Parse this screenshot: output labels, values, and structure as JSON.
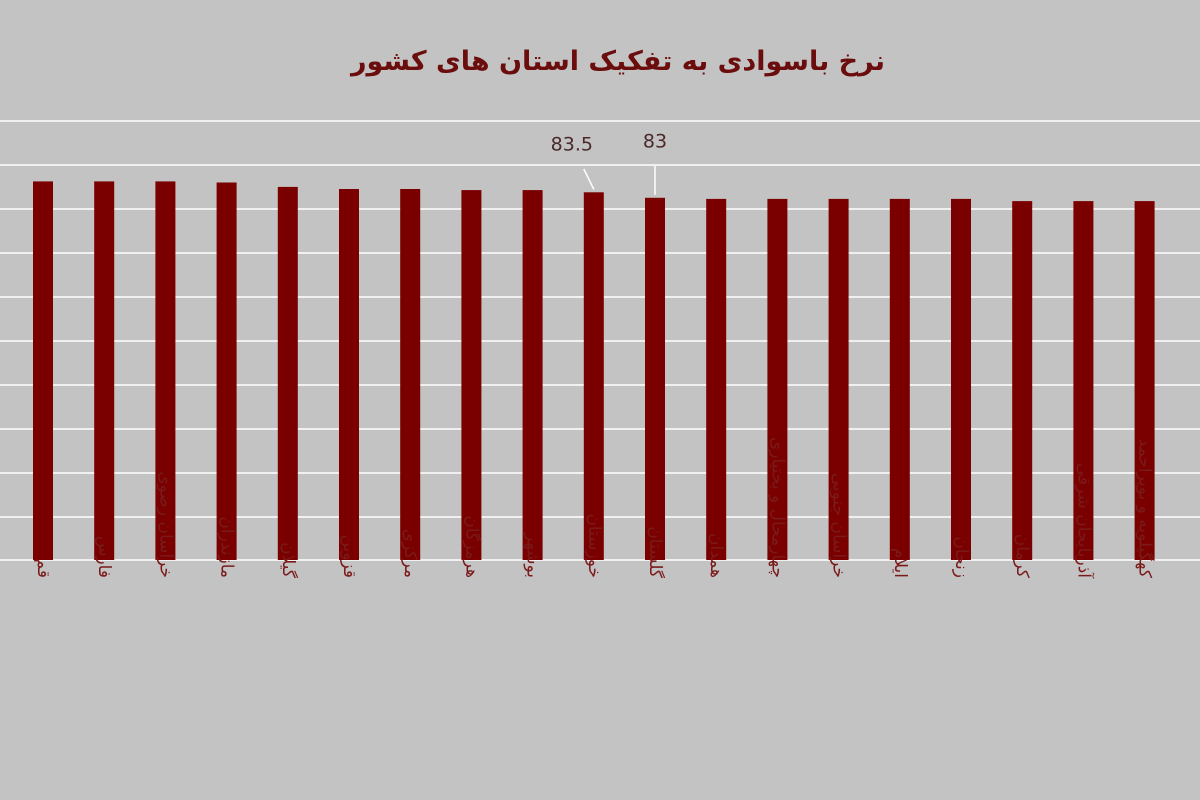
{
  "chart_data": {
    "type": "bar",
    "title": "نرخ باسوادی به تفکیک استان های کشور",
    "xlabel": "",
    "ylabel": "",
    "ylim": [
      50,
      90
    ],
    "grid": true,
    "bar_color": "#7a0000",
    "title_color": "#6b0d0d",
    "label_color": "#7a1a1a",
    "background": "#c3c3c3",
    "categories": [
      "قم",
      "فارس",
      "خراسان رضوی",
      "مازندران",
      "گیلان",
      "قزوین",
      "مرکزی",
      "هرمزگان",
      "بوشهر",
      "خوزستان",
      "گلستان",
      "همدان",
      "چهارمحال و بختیاری",
      "خراسان جنوبی",
      "ایلام",
      "زنجان",
      "کرمان",
      "آذربایجان شرقی",
      "کهگیلویه و بویراحمد"
    ],
    "values": [
      84.5,
      84.5,
      84.5,
      84.4,
      84.0,
      83.8,
      83.8,
      83.7,
      83.7,
      83.5,
      83.0,
      82.9,
      82.9,
      82.9,
      82.9,
      82.9,
      82.7,
      82.7,
      82.7
    ],
    "data_labels": [
      {
        "index": 9,
        "text": "83.5"
      },
      {
        "index": 10,
        "text": "83"
      }
    ]
  }
}
